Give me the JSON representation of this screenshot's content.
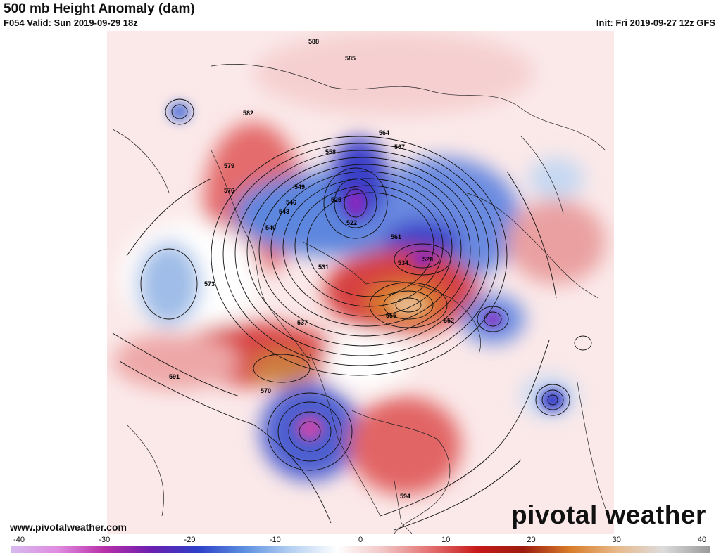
{
  "header": {
    "title": "500 mb Height Anomaly (dam)",
    "valid": "F054 Valid: Sun 2019-09-29 18z",
    "init": "Init: Fri 2019-09-27 12z GFS"
  },
  "footer": {
    "url": "www.pivotalweather.com",
    "brand": "pivotal weather"
  },
  "colorbar": {
    "ticks": [
      "-40",
      "-30",
      "-20",
      "-10",
      "0",
      "10",
      "20",
      "30",
      "40"
    ],
    "stops": [
      "#d7b9ee",
      "#e08be0",
      "#b82fa8",
      "#6b1fb0",
      "#2d3fc8",
      "#5c8fe0",
      "#b4d0f2",
      "#ffffff",
      "#f2c4c4",
      "#e37070",
      "#c81a1a",
      "#9c1c0e",
      "#d97d2a",
      "#e8b98a",
      "#dcdcdc",
      "#9a9a9a"
    ]
  },
  "contour_labels": [
    {
      "text": "588"
    },
    {
      "text": "585"
    },
    {
      "text": "582"
    },
    {
      "text": "579"
    },
    {
      "text": "576"
    },
    {
      "text": "573"
    },
    {
      "text": "570"
    },
    {
      "text": "567"
    },
    {
      "text": "564"
    },
    {
      "text": "561"
    },
    {
      "text": "558"
    },
    {
      "text": "555"
    },
    {
      "text": "552"
    },
    {
      "text": "549"
    },
    {
      "text": "546"
    },
    {
      "text": "543"
    },
    {
      "text": "540"
    },
    {
      "text": "537"
    },
    {
      "text": "534"
    },
    {
      "text": "531"
    },
    {
      "text": "528"
    },
    {
      "text": "525"
    },
    {
      "text": "522"
    },
    {
      "text": "591"
    },
    {
      "text": "594"
    }
  ]
}
